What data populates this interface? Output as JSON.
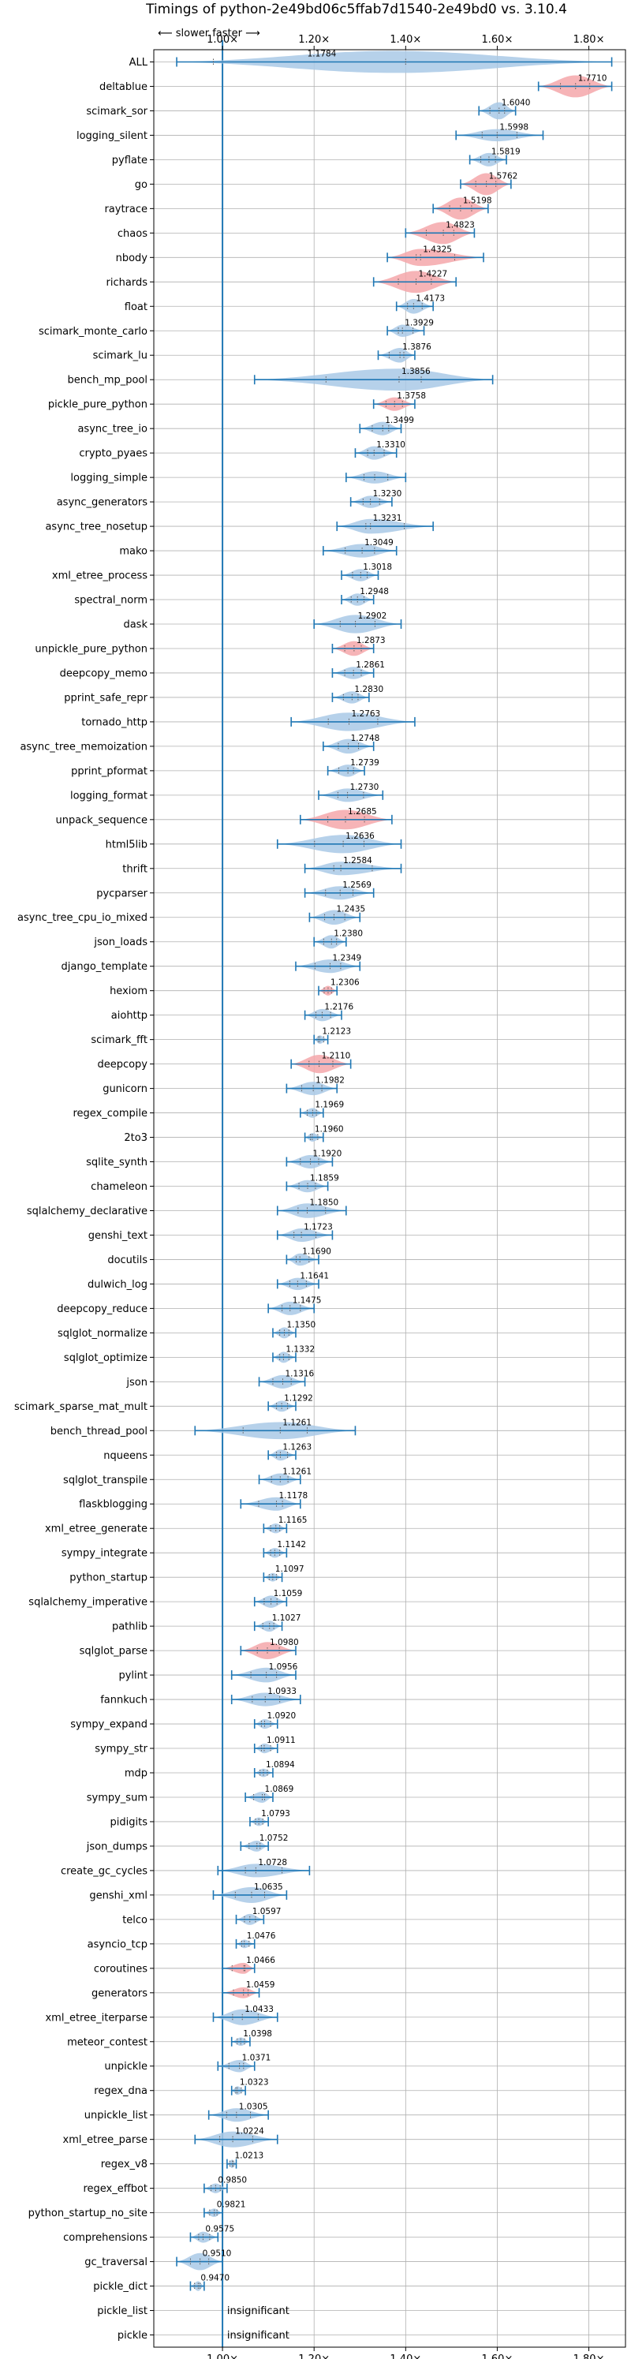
{
  "chart_data": {
    "type": "violin",
    "title": "Timings of python-2e49bd06c5ffab7d1540-2e49bd0 vs. 3.10.4",
    "direction_label": "⟵ slower   faster ⟶",
    "xlim": [
      0.85,
      1.88
    ],
    "x_ticks": [
      1.0,
      1.2,
      1.4,
      1.6,
      1.8
    ],
    "x_tick_labels": [
      "1.00×",
      "1.20×",
      "1.40×",
      "1.60×",
      "1.80×"
    ],
    "reference_x": 1.0,
    "colors": {
      "faster": "#a9c9e6",
      "slower": "#f4a7aa",
      "line": "#1f77b4",
      "grid": "#b0b0b0"
    },
    "rows": [
      {
        "name": "ALL",
        "value": null,
        "label": "1.1784",
        "lo": 0.9,
        "hi": 1.85,
        "q1": 0.98,
        "q3": 1.4,
        "w": 0.9,
        "color": "faster"
      },
      {
        "name": "deltablue",
        "value": 1.771,
        "label": "1.7710",
        "lo": 1.69,
        "hi": 1.85,
        "w": 0.9,
        "color": "slower"
      },
      {
        "name": "scimark_sor",
        "value": 1.604,
        "label": "1.6040",
        "lo": 1.56,
        "hi": 1.64,
        "w": 0.7,
        "color": "faster"
      },
      {
        "name": "logging_silent",
        "value": 1.5998,
        "label": "1.5998",
        "lo": 1.51,
        "hi": 1.7,
        "w": 0.5,
        "color": "faster"
      },
      {
        "name": "pyflate",
        "value": 1.5819,
        "label": "1.5819",
        "lo": 1.54,
        "hi": 1.62,
        "w": 0.55,
        "color": "faster"
      },
      {
        "name": "go",
        "value": 1.5762,
        "label": "1.5762",
        "lo": 1.52,
        "hi": 1.63,
        "w": 0.9,
        "color": "slower"
      },
      {
        "name": "raytrace",
        "value": 1.5198,
        "label": "1.5198",
        "lo": 1.46,
        "hi": 1.58,
        "w": 0.9,
        "color": "slower"
      },
      {
        "name": "chaos",
        "value": 1.4823,
        "label": "1.4823",
        "lo": 1.4,
        "hi": 1.55,
        "w": 0.9,
        "color": "slower"
      },
      {
        "name": "nbody",
        "value": 1.4325,
        "label": "1.4325",
        "lo": 1.36,
        "hi": 1.57,
        "w": 0.7,
        "color": "slower"
      },
      {
        "name": "richards",
        "value": 1.4227,
        "label": "1.4227",
        "lo": 1.33,
        "hi": 1.51,
        "w": 0.9,
        "color": "slower"
      },
      {
        "name": "float",
        "value": 1.4173,
        "label": "1.4173",
        "lo": 1.38,
        "hi": 1.46,
        "w": 0.6,
        "color": "faster"
      },
      {
        "name": "scimark_monte_carlo",
        "value": 1.3929,
        "label": "1.3929",
        "lo": 1.36,
        "hi": 1.44,
        "w": 0.5,
        "color": "faster"
      },
      {
        "name": "scimark_lu",
        "value": 1.3876,
        "label": "1.3876",
        "lo": 1.34,
        "hi": 1.42,
        "w": 0.6,
        "color": "faster"
      },
      {
        "name": "bench_mp_pool",
        "value": 1.3856,
        "label": "1.3856",
        "lo": 1.07,
        "hi": 1.59,
        "w": 0.9,
        "color": "faster"
      },
      {
        "name": "pickle_pure_python",
        "value": 1.3758,
        "label": "1.3758",
        "lo": 1.33,
        "hi": 1.42,
        "w": 0.55,
        "color": "slower"
      },
      {
        "name": "async_tree_io",
        "value": 1.3499,
        "label": "1.3499",
        "lo": 1.3,
        "hi": 1.39,
        "w": 0.55,
        "color": "faster"
      },
      {
        "name": "crypto_pyaes",
        "value": 1.331,
        "label": "1.3310",
        "lo": 1.29,
        "hi": 1.38,
        "w": 0.55,
        "color": "faster"
      },
      {
        "name": "logging_simple",
        "value": 1.3323,
        "label": "",
        "lo": 1.27,
        "hi": 1.4,
        "w": 0.5,
        "color": "faster"
      },
      {
        "name": "async_generators",
        "value": 1.323,
        "label": "1.3230",
        "lo": 1.28,
        "hi": 1.37,
        "w": 0.5,
        "color": "faster"
      },
      {
        "name": "async_tree_nosetup",
        "value": 1.3231,
        "label": "1.3231",
        "lo": 1.25,
        "hi": 1.46,
        "w": 0.6,
        "color": "faster"
      },
      {
        "name": "mako",
        "value": 1.3049,
        "label": "1.3049",
        "lo": 1.22,
        "hi": 1.38,
        "w": 0.55,
        "color": "faster"
      },
      {
        "name": "xml_etree_process",
        "value": 1.3018,
        "label": "1.3018",
        "lo": 1.26,
        "hi": 1.34,
        "w": 0.5,
        "color": "faster"
      },
      {
        "name": "spectral_norm",
        "value": 1.2948,
        "label": "1.2948",
        "lo": 1.26,
        "hi": 1.33,
        "w": 0.5,
        "color": "faster"
      },
      {
        "name": "dask",
        "value": 1.2902,
        "label": "1.2902",
        "lo": 1.2,
        "hi": 1.39,
        "w": 0.75,
        "color": "faster"
      },
      {
        "name": "unpickle_pure_python",
        "value": 1.2873,
        "label": "1.2873",
        "lo": 1.24,
        "hi": 1.33,
        "w": 0.6,
        "color": "slower"
      },
      {
        "name": "deepcopy_memo",
        "value": 1.2861,
        "label": "1.2861",
        "lo": 1.24,
        "hi": 1.33,
        "w": 0.5,
        "color": "faster"
      },
      {
        "name": "pprint_safe_repr",
        "value": 1.283,
        "label": "1.2830",
        "lo": 1.24,
        "hi": 1.32,
        "w": 0.5,
        "color": "faster"
      },
      {
        "name": "tornado_http",
        "value": 1.2763,
        "label": "1.2763",
        "lo": 1.15,
        "hi": 1.42,
        "w": 0.75,
        "color": "faster"
      },
      {
        "name": "async_tree_memoization",
        "value": 1.2748,
        "label": "1.2748",
        "lo": 1.22,
        "hi": 1.33,
        "w": 0.6,
        "color": "faster"
      },
      {
        "name": "pprint_pformat",
        "value": 1.2739,
        "label": "1.2739",
        "lo": 1.23,
        "hi": 1.31,
        "w": 0.5,
        "color": "faster"
      },
      {
        "name": "logging_format",
        "value": 1.273,
        "label": "1.2730",
        "lo": 1.21,
        "hi": 1.35,
        "w": 0.55,
        "color": "faster"
      },
      {
        "name": "unpack_sequence",
        "value": 1.2685,
        "label": "1.2685",
        "lo": 1.17,
        "hi": 1.37,
        "w": 0.8,
        "color": "slower"
      },
      {
        "name": "html5lib",
        "value": 1.2636,
        "label": "1.2636",
        "lo": 1.12,
        "hi": 1.39,
        "w": 0.75,
        "color": "faster"
      },
      {
        "name": "thrift",
        "value": 1.2584,
        "label": "1.2584",
        "lo": 1.18,
        "hi": 1.39,
        "w": 0.55,
        "color": "faster"
      },
      {
        "name": "pycparser",
        "value": 1.2569,
        "label": "1.2569",
        "lo": 1.18,
        "hi": 1.33,
        "w": 0.55,
        "color": "faster"
      },
      {
        "name": "async_tree_cpu_io_mixed",
        "value": 1.2435,
        "label": "1.2435",
        "lo": 1.19,
        "hi": 1.3,
        "w": 0.6,
        "color": "faster"
      },
      {
        "name": "json_loads",
        "value": 1.238,
        "label": "1.2380",
        "lo": 1.2,
        "hi": 1.27,
        "w": 0.55,
        "color": "faster"
      },
      {
        "name": "django_template",
        "value": 1.2349,
        "label": "1.2349",
        "lo": 1.16,
        "hi": 1.3,
        "w": 0.55,
        "color": "faster"
      },
      {
        "name": "hexiom",
        "value": 1.2306,
        "label": "1.2306",
        "lo": 1.21,
        "hi": 1.25,
        "w": 0.4,
        "color": "slower"
      },
      {
        "name": "aiohttp",
        "value": 1.2176,
        "label": "1.2176",
        "lo": 1.18,
        "hi": 1.26,
        "w": 0.5,
        "color": "faster"
      },
      {
        "name": "scimark_fft",
        "value": 1.2123,
        "label": "1.2123",
        "lo": 1.2,
        "hi": 1.23,
        "w": 0.35,
        "color": "faster"
      },
      {
        "name": "deepcopy",
        "value": 1.211,
        "label": "1.2110",
        "lo": 1.15,
        "hi": 1.28,
        "w": 0.75,
        "color": "slower"
      },
      {
        "name": "gunicorn",
        "value": 1.1982,
        "label": "1.1982",
        "lo": 1.14,
        "hi": 1.25,
        "w": 0.55,
        "color": "faster"
      },
      {
        "name": "regex_compile",
        "value": 1.1969,
        "label": "1.1969",
        "lo": 1.17,
        "hi": 1.22,
        "w": 0.4,
        "color": "faster"
      },
      {
        "name": "2to3",
        "value": 1.196,
        "label": "1.1960",
        "lo": 1.18,
        "hi": 1.22,
        "w": 0.35,
        "color": "faster"
      },
      {
        "name": "sqlite_synth",
        "value": 1.192,
        "label": "1.1920",
        "lo": 1.14,
        "hi": 1.24,
        "w": 0.55,
        "color": "faster"
      },
      {
        "name": "chameleon",
        "value": 1.1859,
        "label": "1.1859",
        "lo": 1.14,
        "hi": 1.23,
        "w": 0.5,
        "color": "faster"
      },
      {
        "name": "sqlalchemy_declarative",
        "value": 1.185,
        "label": "1.1850",
        "lo": 1.12,
        "hi": 1.27,
        "w": 0.6,
        "color": "faster"
      },
      {
        "name": "genshi_text",
        "value": 1.1723,
        "label": "1.1723",
        "lo": 1.12,
        "hi": 1.24,
        "w": 0.55,
        "color": "faster"
      },
      {
        "name": "docutils",
        "value": 1.169,
        "label": "1.1690",
        "lo": 1.14,
        "hi": 1.21,
        "w": 0.5,
        "color": "faster"
      },
      {
        "name": "dulwich_log",
        "value": 1.1641,
        "label": "1.1641",
        "lo": 1.12,
        "hi": 1.21,
        "w": 0.5,
        "color": "faster"
      },
      {
        "name": "deepcopy_reduce",
        "value": 1.1475,
        "label": "1.1475",
        "lo": 1.1,
        "hi": 1.2,
        "w": 0.55,
        "color": "faster"
      },
      {
        "name": "sqlglot_normalize",
        "value": 1.135,
        "label": "1.1350",
        "lo": 1.11,
        "hi": 1.16,
        "w": 0.45,
        "color": "faster"
      },
      {
        "name": "sqlglot_optimize",
        "value": 1.1332,
        "label": "1.1332",
        "lo": 1.11,
        "hi": 1.16,
        "w": 0.45,
        "color": "faster"
      },
      {
        "name": "json",
        "value": 1.1316,
        "label": "1.1316",
        "lo": 1.08,
        "hi": 1.18,
        "w": 0.55,
        "color": "faster"
      },
      {
        "name": "scimark_sparse_mat_mult",
        "value": 1.1292,
        "label": "1.1292",
        "lo": 1.1,
        "hi": 1.16,
        "w": 0.45,
        "color": "faster"
      },
      {
        "name": "bench_thread_pool",
        "value": 1.1261,
        "label": "1.1261",
        "lo": 0.94,
        "hi": 1.29,
        "w": 0.7,
        "color": "faster"
      },
      {
        "name": "nqueens",
        "value": 1.1263,
        "label": "1.1263",
        "lo": 1.1,
        "hi": 1.16,
        "w": 0.45,
        "color": "faster"
      },
      {
        "name": "sqlglot_transpile",
        "value": 1.1261,
        "label": "1.1261",
        "lo": 1.08,
        "hi": 1.17,
        "w": 0.5,
        "color": "faster"
      },
      {
        "name": "flaskblogging",
        "value": 1.1178,
        "label": "1.1178",
        "lo": 1.04,
        "hi": 1.17,
        "w": 0.55,
        "color": "faster"
      },
      {
        "name": "xml_etree_generate",
        "value": 1.1165,
        "label": "1.1165",
        "lo": 1.09,
        "hi": 1.14,
        "w": 0.4,
        "color": "faster"
      },
      {
        "name": "sympy_integrate",
        "value": 1.1142,
        "label": "1.1142",
        "lo": 1.09,
        "hi": 1.14,
        "w": 0.4,
        "color": "faster"
      },
      {
        "name": "python_startup",
        "value": 1.1097,
        "label": "1.1097",
        "lo": 1.09,
        "hi": 1.13,
        "w": 0.35,
        "color": "faster"
      },
      {
        "name": "sqlalchemy_imperative",
        "value": 1.1059,
        "label": "1.1059",
        "lo": 1.07,
        "hi": 1.14,
        "w": 0.5,
        "color": "faster"
      },
      {
        "name": "pathlib",
        "value": 1.1027,
        "label": "1.1027",
        "lo": 1.07,
        "hi": 1.13,
        "w": 0.45,
        "color": "faster"
      },
      {
        "name": "sqlglot_parse",
        "value": 1.098,
        "label": "1.0980",
        "lo": 1.04,
        "hi": 1.16,
        "w": 0.7,
        "color": "slower"
      },
      {
        "name": "pylint",
        "value": 1.0956,
        "label": "1.0956",
        "lo": 1.02,
        "hi": 1.16,
        "w": 0.6,
        "color": "faster"
      },
      {
        "name": "fannkuch",
        "value": 1.0933,
        "label": "1.0933",
        "lo": 1.02,
        "hi": 1.17,
        "w": 0.55,
        "color": "faster"
      },
      {
        "name": "sympy_expand",
        "value": 1.092,
        "label": "1.0920",
        "lo": 1.07,
        "hi": 1.12,
        "w": 0.4,
        "color": "faster"
      },
      {
        "name": "sympy_str",
        "value": 1.0911,
        "label": "1.0911",
        "lo": 1.07,
        "hi": 1.12,
        "w": 0.4,
        "color": "faster"
      },
      {
        "name": "mdp",
        "value": 1.0894,
        "label": "1.0894",
        "lo": 1.07,
        "hi": 1.11,
        "w": 0.35,
        "color": "faster"
      },
      {
        "name": "sympy_sum",
        "value": 1.0869,
        "label": "1.0869",
        "lo": 1.05,
        "hi": 1.11,
        "w": 0.45,
        "color": "faster"
      },
      {
        "name": "pidigits",
        "value": 1.0793,
        "label": "1.0793",
        "lo": 1.06,
        "hi": 1.1,
        "w": 0.35,
        "color": "faster"
      },
      {
        "name": "json_dumps",
        "value": 1.0752,
        "label": "1.0752",
        "lo": 1.04,
        "hi": 1.1,
        "w": 0.45,
        "color": "faster"
      },
      {
        "name": "create_gc_cycles",
        "value": 1.0728,
        "label": "1.0728",
        "lo": 0.99,
        "hi": 1.19,
        "w": 0.55,
        "color": "faster"
      },
      {
        "name": "genshi_xml",
        "value": 1.0635,
        "label": "1.0635",
        "lo": 0.98,
        "hi": 1.14,
        "w": 0.65,
        "color": "faster"
      },
      {
        "name": "telco",
        "value": 1.0597,
        "label": "1.0597",
        "lo": 1.03,
        "hi": 1.09,
        "w": 0.45,
        "color": "faster"
      },
      {
        "name": "asyncio_tcp",
        "value": 1.0476,
        "label": "1.0476",
        "lo": 1.03,
        "hi": 1.07,
        "w": 0.35,
        "color": "faster"
      },
      {
        "name": "coroutines",
        "value": 1.0466,
        "label": "1.0466",
        "lo": 1.0,
        "hi": 1.07,
        "w": 0.45,
        "color": "slower"
      },
      {
        "name": "generators",
        "value": 1.0459,
        "label": "1.0459",
        "lo": 1.0,
        "hi": 1.08,
        "w": 0.45,
        "color": "slower"
      },
      {
        "name": "xml_etree_iterparse",
        "value": 1.0433,
        "label": "1.0433",
        "lo": 0.98,
        "hi": 1.12,
        "w": 0.65,
        "color": "faster"
      },
      {
        "name": "meteor_contest",
        "value": 1.0398,
        "label": "1.0398",
        "lo": 1.02,
        "hi": 1.06,
        "w": 0.35,
        "color": "faster"
      },
      {
        "name": "unpickle",
        "value": 1.0371,
        "label": "1.0371",
        "lo": 0.99,
        "hi": 1.07,
        "w": 0.5,
        "color": "faster"
      },
      {
        "name": "regex_dna",
        "value": 1.0323,
        "label": "1.0323",
        "lo": 1.02,
        "hi": 1.05,
        "w": 0.35,
        "color": "faster"
      },
      {
        "name": "unpickle_list",
        "value": 1.0305,
        "label": "1.0305",
        "lo": 0.97,
        "hi": 1.1,
        "w": 0.55,
        "color": "faster"
      },
      {
        "name": "xml_etree_parse",
        "value": 1.0224,
        "label": "1.0224",
        "lo": 0.94,
        "hi": 1.12,
        "w": 0.65,
        "color": "faster"
      },
      {
        "name": "regex_v8",
        "value": 1.0213,
        "label": "1.0213",
        "lo": 1.01,
        "hi": 1.03,
        "w": 0.35,
        "color": "faster"
      },
      {
        "name": "regex_effbot",
        "value": 0.985,
        "label": "0.9850",
        "lo": 0.96,
        "hi": 1.01,
        "w": 0.4,
        "color": "faster"
      },
      {
        "name": "python_startup_no_site",
        "value": 0.9821,
        "label": "0.9821",
        "lo": 0.96,
        "hi": 1.0,
        "w": 0.35,
        "color": "faster"
      },
      {
        "name": "comprehensions",
        "value": 0.9575,
        "label": "0.9575",
        "lo": 0.93,
        "hi": 0.99,
        "w": 0.45,
        "color": "faster"
      },
      {
        "name": "gc_traversal",
        "value": 0.951,
        "label": "0.9510",
        "lo": 0.9,
        "hi": 1.0,
        "w": 0.7,
        "color": "faster"
      },
      {
        "name": "pickle_dict",
        "value": 0.947,
        "label": "0.9470",
        "lo": 0.93,
        "hi": 0.96,
        "w": 0.4,
        "color": "faster"
      },
      {
        "name": "pickle_list",
        "value": null,
        "label": "insignificant",
        "insignificant": true
      },
      {
        "name": "pickle",
        "value": null,
        "label": "insignificant",
        "insignificant": true
      }
    ]
  }
}
